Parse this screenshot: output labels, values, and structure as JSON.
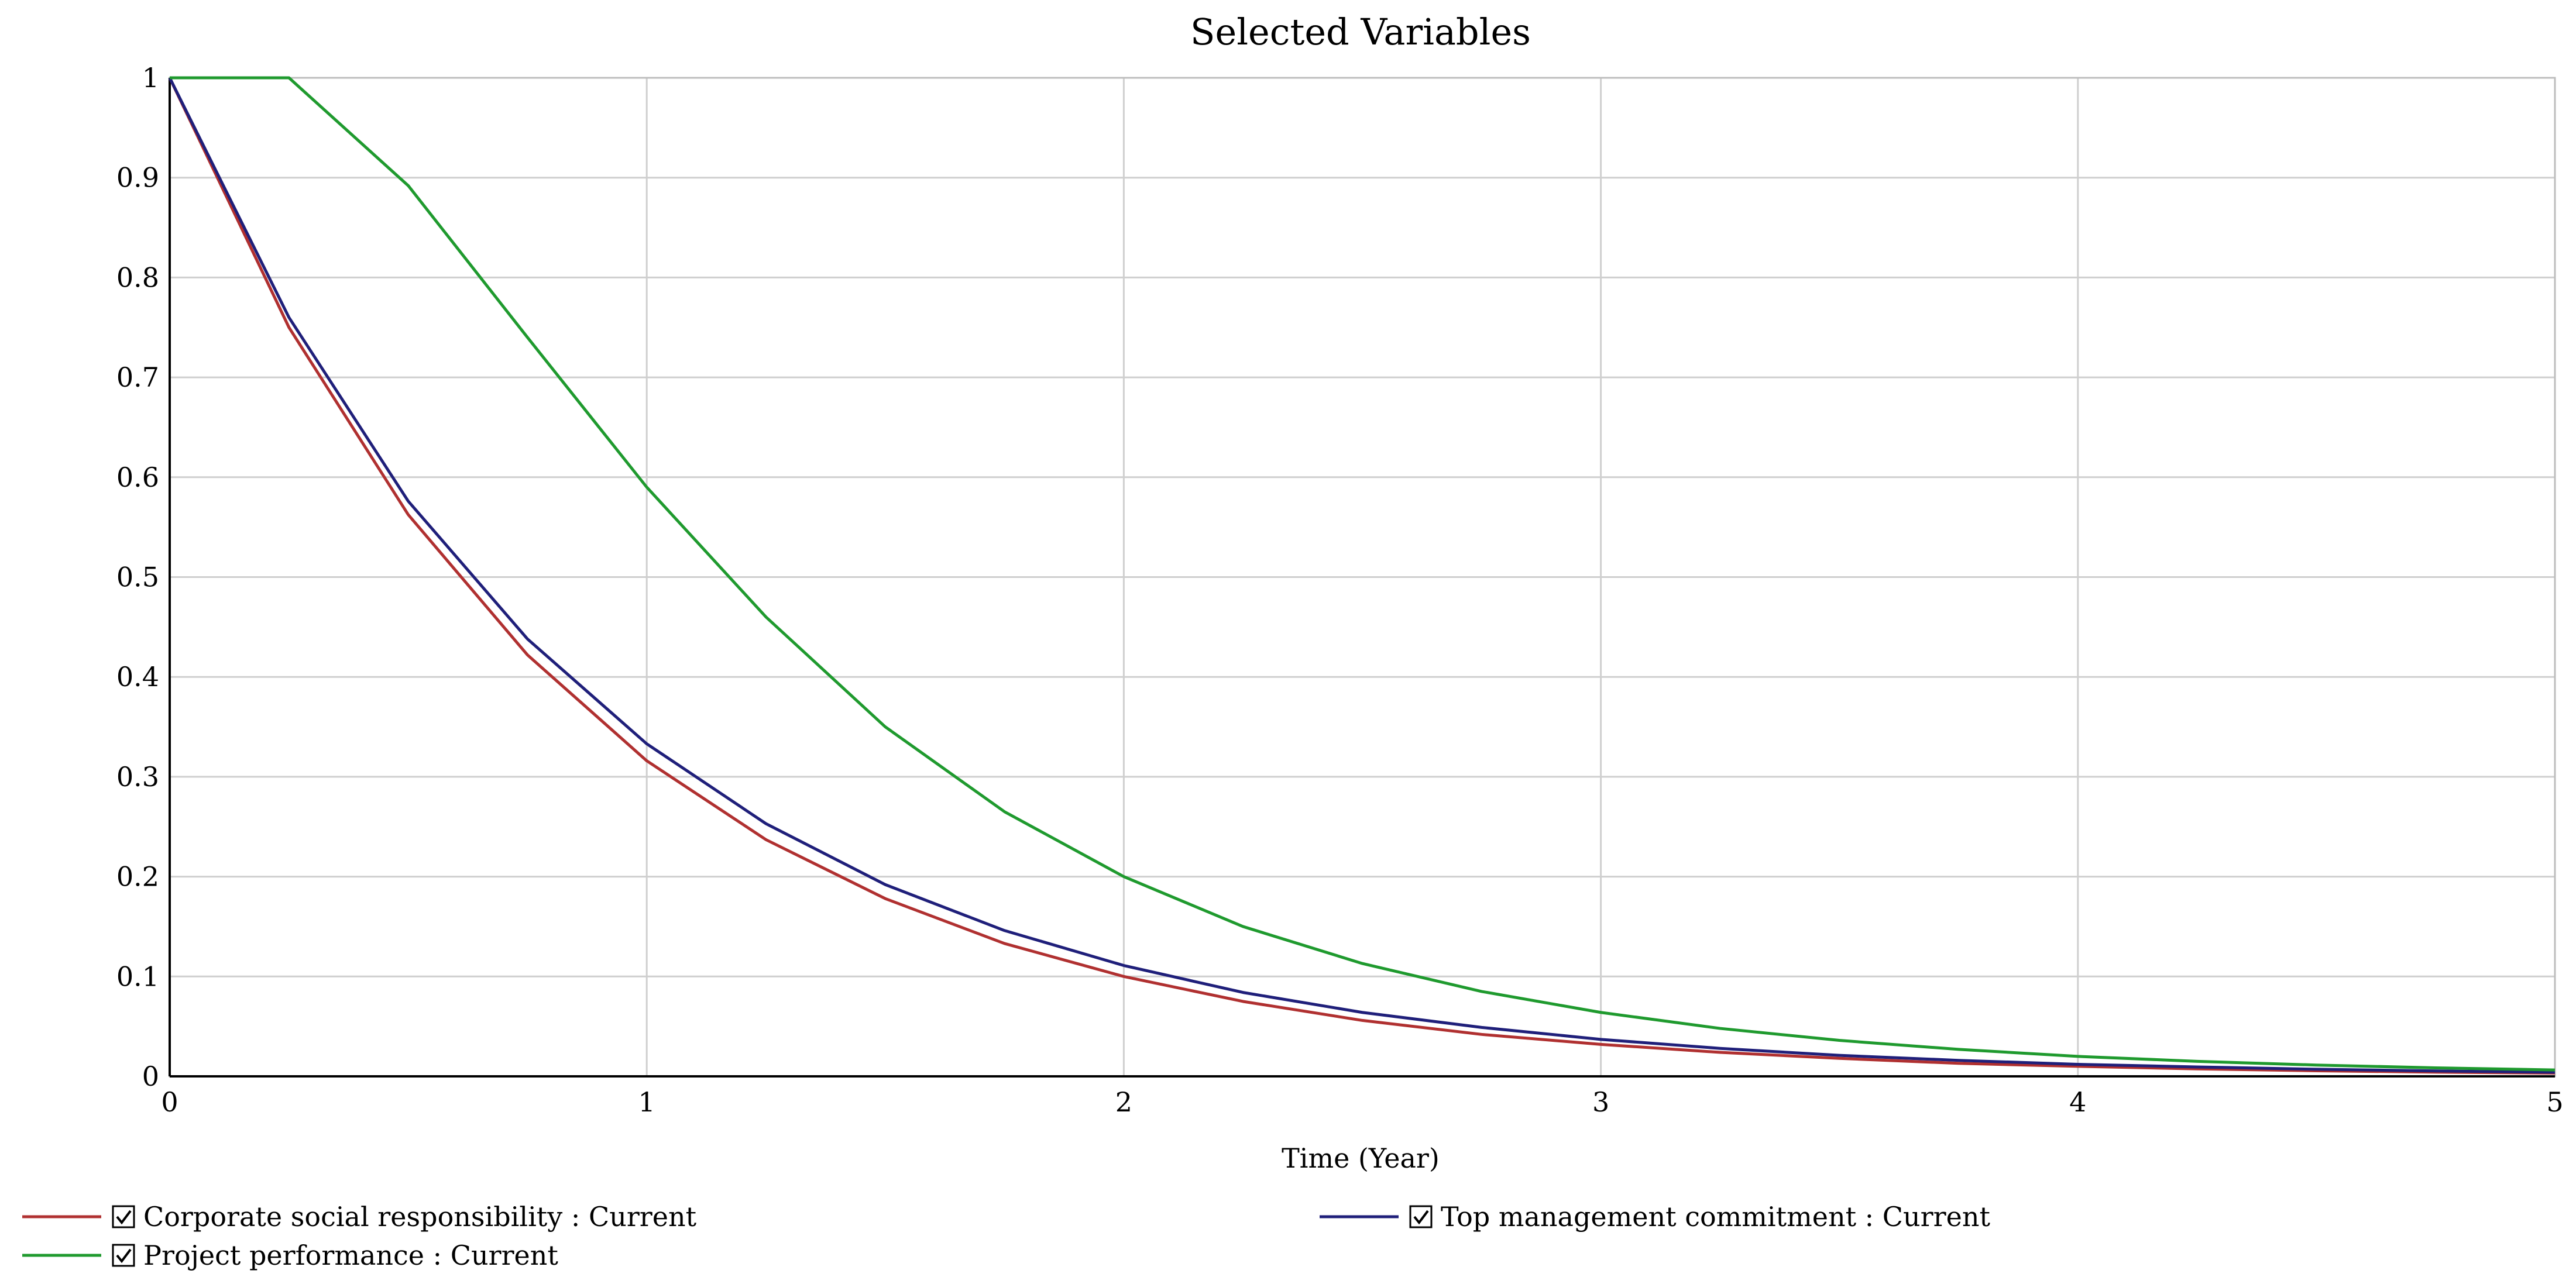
{
  "chart_data": {
    "type": "line",
    "title": "Selected Variables",
    "xlabel": "Time (Year)",
    "ylabel": "",
    "xlim": [
      0,
      5
    ],
    "ylim": [
      0,
      1
    ],
    "grid": true,
    "legend_placement": "bottom",
    "x_ticks": [
      "0",
      "1",
      "2",
      "3",
      "4",
      "5"
    ],
    "y_ticks": [
      "0",
      "0.1",
      "0.2",
      "0.3",
      "0.4",
      "0.5",
      "0.6",
      "0.7",
      "0.8",
      "0.9",
      "1"
    ],
    "x": [
      0,
      0.25,
      0.5,
      0.75,
      1,
      1.25,
      1.5,
      1.75,
      2,
      2.25,
      2.5,
      2.75,
      3,
      3.25,
      3.5,
      3.75,
      4,
      4.25,
      4.5,
      4.75,
      5
    ],
    "series": [
      {
        "name": "Corporate social responsibility : Current",
        "color": "#b03030",
        "values": [
          1,
          0.75,
          0.5625,
          0.422,
          0.316,
          0.237,
          0.178,
          0.133,
          0.1,
          0.075,
          0.056,
          0.042,
          0.032,
          0.024,
          0.018,
          0.013,
          0.01,
          0.0075,
          0.0056,
          0.0042,
          0.0032
        ]
      },
      {
        "name": "Top management commitment : Current",
        "color": "#1f1f7a",
        "values": [
          1,
          0.76,
          0.576,
          0.438,
          0.333,
          0.253,
          0.192,
          0.146,
          0.111,
          0.084,
          0.064,
          0.049,
          0.037,
          0.028,
          0.021,
          0.016,
          0.012,
          0.0094,
          0.0071,
          0.0054,
          0.0041
        ]
      },
      {
        "name": "Project performance : Current",
        "color": "#1f9a2e",
        "values": [
          1,
          1,
          0.892,
          0.74,
          0.59,
          0.46,
          0.35,
          0.265,
          0.2,
          0.15,
          0.113,
          0.085,
          0.064,
          0.048,
          0.036,
          0.027,
          0.02,
          0.015,
          0.0113,
          0.0085,
          0.0064
        ]
      }
    ],
    "legend_checkbox": "checked"
  }
}
